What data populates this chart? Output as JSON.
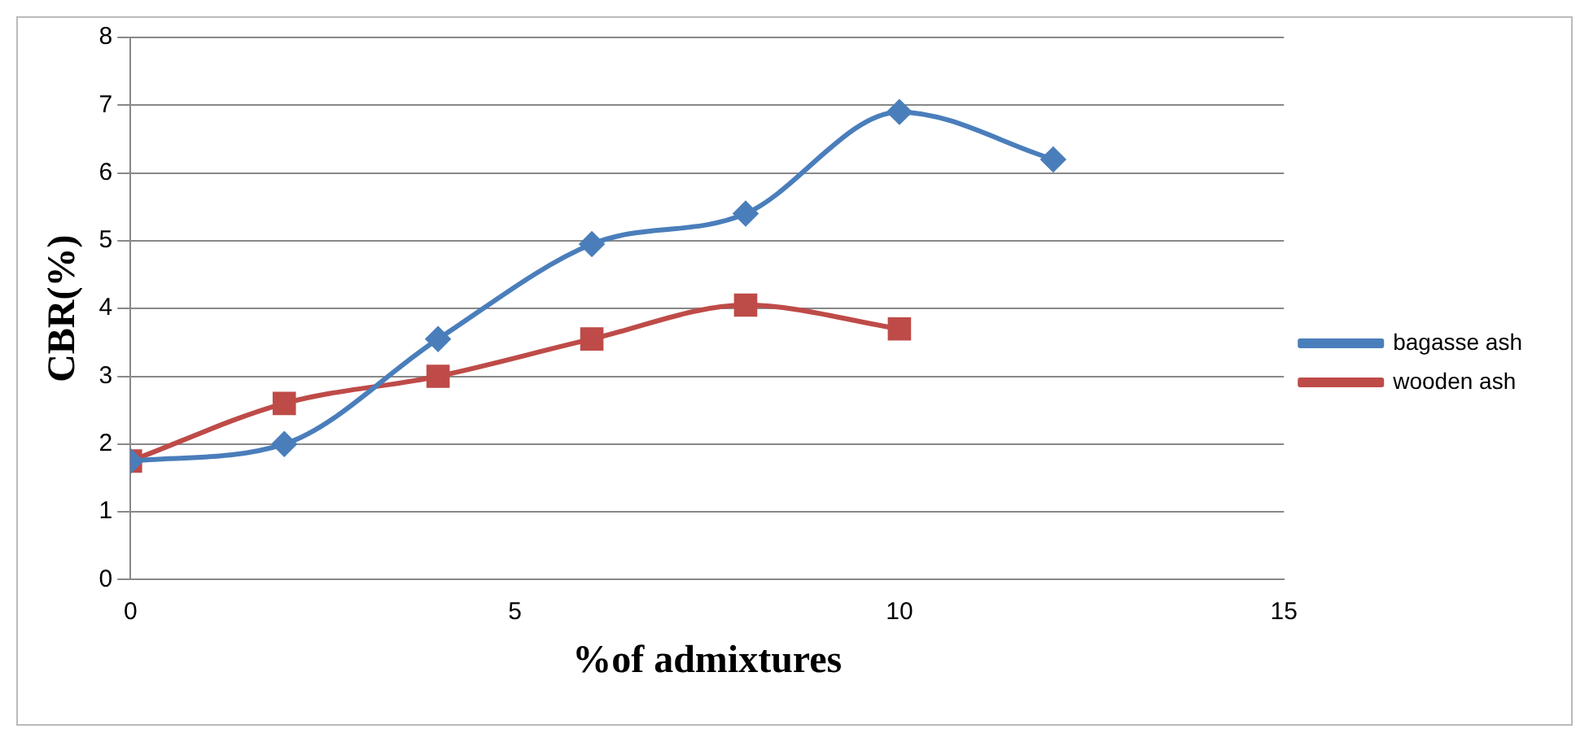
{
  "chart_data": {
    "type": "line",
    "xlabel": "%of admixtures",
    "ylabel": "CBR(%)",
    "xlim": [
      0,
      15
    ],
    "xticks": [
      0,
      5,
      10,
      15
    ],
    "ylim": [
      0,
      8
    ],
    "yticks": [
      0,
      1,
      2,
      3,
      4,
      5,
      6,
      7,
      8
    ],
    "grid": "y",
    "legend": "right",
    "series": [
      {
        "name": "bagasse ash",
        "color": "#4a7ebb",
        "marker": "diamond",
        "x": [
          0,
          2,
          4,
          6,
          8,
          10,
          12
        ],
        "values": [
          1.75,
          2.0,
          3.55,
          4.95,
          5.4,
          6.9,
          6.2
        ]
      },
      {
        "name": "wooden ash",
        "color": "#be4b48",
        "marker": "square",
        "x": [
          0,
          2,
          4,
          6,
          8,
          10
        ],
        "values": [
          1.75,
          2.6,
          3.0,
          3.55,
          4.05,
          3.7
        ]
      }
    ]
  }
}
